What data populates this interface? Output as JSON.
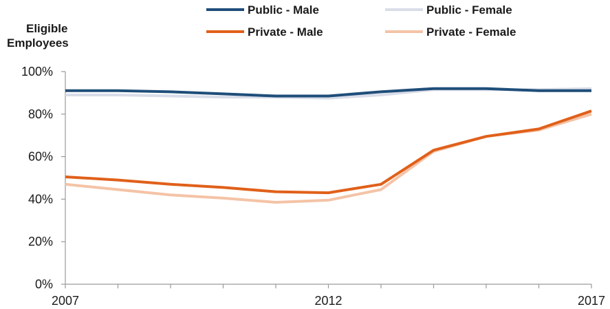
{
  "chart_data": {
    "type": "line",
    "title": "",
    "ylabel": "Eligible Employees",
    "xlabel": "",
    "x": [
      2007,
      2008,
      2009,
      2010,
      2011,
      2012,
      2013,
      2014,
      2015,
      2016,
      2017
    ],
    "x_tick_labels": [
      "2007",
      "2012",
      "2017"
    ],
    "y_tick_labels": [
      "0%",
      "20%",
      "40%",
      "60%",
      "80%",
      "100%"
    ],
    "y_ticks": [
      0,
      20,
      40,
      60,
      80,
      100
    ],
    "ylim": [
      0,
      100
    ],
    "xlim": [
      2007,
      2017
    ],
    "grid": false,
    "legend_position": "top",
    "series": [
      {
        "name": "Public - Male",
        "color": "#1f4e79",
        "values": [
          91,
          91,
          90.5,
          89.5,
          88.5,
          88.5,
          90.5,
          92,
          92,
          91,
          91
        ]
      },
      {
        "name": "Public - Female",
        "color": "#d9dde8",
        "values": [
          89,
          89,
          88.5,
          88,
          88,
          87.5,
          89,
          91.5,
          91.5,
          91.5,
          92
        ]
      },
      {
        "name": "Private - Male",
        "color": "#e0601a",
        "values": [
          50.5,
          49,
          47,
          45.5,
          43.5,
          43,
          47,
          63,
          69.5,
          73,
          81.5
        ]
      },
      {
        "name": "Private - Female",
        "color": "#f4c3a6",
        "values": [
          47,
          44.5,
          42,
          40.5,
          38.5,
          39.5,
          44.5,
          62.5,
          69.5,
          72.5,
          80
        ]
      }
    ]
  }
}
